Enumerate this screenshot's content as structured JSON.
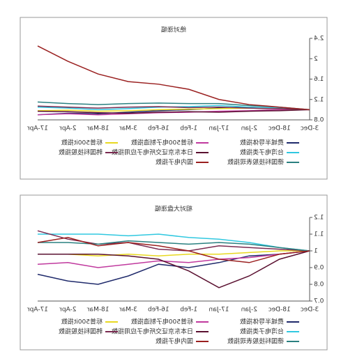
{
  "chart_data": [
    {
      "type": "line",
      "title": "绝对涨幅",
      "categories": [
        "3-Dec",
        "18-Dec",
        "2-Jan",
        "17-Jan",
        "1-Feb",
        "16-Feb",
        "3-Mar",
        "18-Mar",
        "2-Apr",
        "17-Apr"
      ],
      "ylim": [
        0.8,
        2.4
      ],
      "yticks": [
        0.8,
        1.2,
        1.6,
        2,
        2.4
      ],
      "series": [
        {
          "name": "费城半导体指数",
          "color": "#1f2a6b",
          "values": [
            1,
            1.02,
            1.05,
            1.03,
            1.0,
            0.98,
            0.95,
            0.92,
            0.93,
            0.9
          ]
        },
        {
          "name": "标普500电子制造指数",
          "color": "#c0399e",
          "values": [
            1,
            1.0,
            0.98,
            0.97,
            0.95,
            0.94,
            0.92,
            0.9,
            0.92,
            0.9
          ]
        },
        {
          "name": "标普500it指数",
          "color": "#e8d820",
          "values": [
            1,
            1.02,
            1.03,
            1.02,
            1.01,
            1.0,
            0.98,
            0.97,
            0.99,
            0.98
          ]
        },
        {
          "name": "台湾电子类指数",
          "color": "#30c8e0",
          "values": [
            1,
            1.03,
            1.05,
            1.08,
            1.06,
            1.05,
            1.02,
            1.0,
            1.03,
            1.05
          ]
        },
        {
          "name": "日本东京证交所电子应用指数",
          "color": "#5a1030",
          "values": [
            1,
            0.98,
            0.97,
            0.95,
            0.96,
            0.95,
            0.93,
            0.94,
            0.96,
            0.97
          ]
        },
        {
          "name": "韩国科技股指数",
          "color": "#7a2a50",
          "values": [
            1,
            1.02,
            1.03,
            1.05,
            1.04,
            1.06,
            1.05,
            1.03,
            1.05,
            1.07
          ]
        },
        {
          "name": "德国科技股表现指数",
          "color": "#2a8080",
          "values": [
            1,
            1.05,
            1.08,
            1.12,
            1.12,
            1.13,
            1.12,
            1.1,
            1.12,
            1.15
          ]
        },
        {
          "name": "国内电子指数",
          "color": "#9a2020",
          "values": [
            1,
            1.05,
            1.1,
            1.2,
            1.4,
            1.5,
            1.55,
            1.7,
            1.95,
            2.25
          ]
        }
      ]
    },
    {
      "type": "line",
      "title": "相对大盘涨幅",
      "categories": [
        "3-Dec",
        "18-Dec",
        "2-Jan",
        "17-Jan",
        "1-Feb",
        "16-Feb",
        "3-Mar",
        "18-Mar",
        "2-Apr",
        "17-Apr"
      ],
      "ylim": [
        0.7,
        1.2
      ],
      "yticks": [
        0.7,
        0.8,
        0.9,
        1,
        1.1,
        1.2
      ],
      "series": [
        {
          "name": "费城半导体指数",
          "color": "#1f2a6b",
          "values": [
            1,
            0.98,
            0.97,
            0.93,
            0.9,
            0.92,
            0.85,
            0.8,
            0.82,
            0.86
          ]
        },
        {
          "name": "标普500电子制造指数",
          "color": "#c0399e",
          "values": [
            1,
            0.98,
            0.96,
            0.95,
            0.93,
            0.94,
            0.92,
            0.9,
            0.93,
            0.92
          ]
        },
        {
          "name": "标普500it指数",
          "color": "#e8d820",
          "values": [
            1,
            1.0,
            0.99,
            0.98,
            0.98,
            0.97,
            0.98,
            0.97,
            0.98,
            0.98
          ]
        },
        {
          "name": "台湾电子类指数",
          "color": "#30c8e0",
          "values": [
            1,
            1.02,
            1.05,
            1.07,
            1.08,
            1.1,
            1.09,
            1.1,
            1.1,
            1.1
          ]
        },
        {
          "name": "日本东京证交所电子应用指数",
          "color": "#5a1030",
          "values": [
            1,
            0.95,
            0.85,
            0.78,
            0.88,
            0.95,
            0.97,
            0.98,
            0.98,
            0.98
          ]
        },
        {
          "name": "韩国科技股指数",
          "color": "#7a2a50",
          "values": [
            1,
            1.01,
            1.02,
            1.03,
            1.0,
            1.01,
            1.05,
            1.04,
            1.07,
            1.12
          ]
        },
        {
          "name": "德国科技股表现指数",
          "color": "#2a8080",
          "values": [
            1,
            1.02,
            1.04,
            1.05,
            1.04,
            1.05,
            1.06,
            1.04,
            1.05,
            1.05
          ]
        },
        {
          "name": "国内电子指数",
          "color": "#9a2020",
          "values": [
            1,
            0.98,
            0.93,
            0.95,
            1.0,
            1.03,
            1.05,
            1.03,
            1.08,
            1.05
          ]
        }
      ]
    }
  ]
}
